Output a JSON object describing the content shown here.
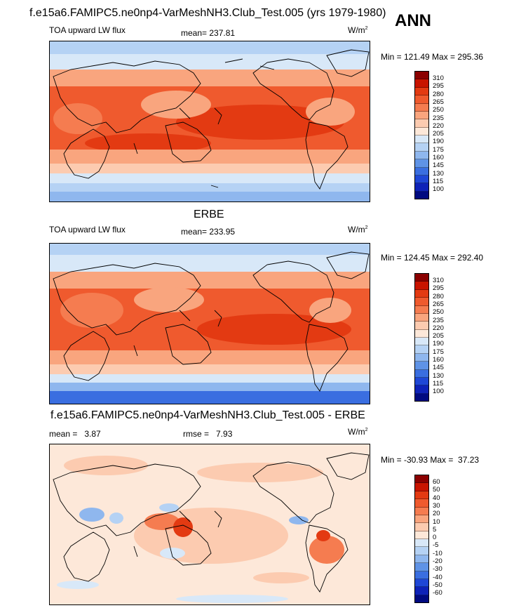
{
  "main_title": "f.e15a6.FAMIPC5.ne0np4-VarMeshNH3.Club_Test.005 (yrs 1979-1980)",
  "season": "ANN",
  "panels": [
    {
      "id": "model",
      "variable": "TOA upward LW flux",
      "mean": "mean= 237.81",
      "units": "W/m",
      "units_exp": "2",
      "minmax": "Min = 121.49 Max = 295.36"
    },
    {
      "id": "obs",
      "title": "ERBE",
      "variable": "TOA upward LW flux",
      "mean": "mean= 233.95",
      "units": "W/m",
      "units_exp": "2",
      "minmax": "Min = 124.45 Max = 292.40"
    },
    {
      "id": "diff",
      "title": "f.e15a6.FAMIPC5.ne0np4-VarMeshNH3.Club_Test.005 - ERBE",
      "mean": "mean =   3.87",
      "rmse": "rmse =   7.93",
      "units": "W/m",
      "units_exp": "2",
      "minmax": "Min = -30.93 Max =  37.23"
    }
  ],
  "colorbar_abs": {
    "levels": [
      "310",
      "295",
      "280",
      "265",
      "250",
      "235",
      "220",
      "205",
      "190",
      "175",
      "160",
      "145",
      "130",
      "115",
      "100"
    ],
    "colors": [
      "#8b0000",
      "#c81400",
      "#e33a12",
      "#ef5a2e",
      "#f57c50",
      "#f9a57e",
      "#fccbb0",
      "#fde8d9",
      "#d8e8f8",
      "#b5d2f4",
      "#8fb7ee",
      "#5f93e6",
      "#3a6ee0",
      "#1f47d6",
      "#0e22b8",
      "#000a80"
    ]
  },
  "colorbar_diff": {
    "levels": [
      "60",
      "50",
      "40",
      "30",
      "20",
      "10",
      "5",
      "0",
      "-5",
      "-10",
      "-20",
      "-30",
      "-40",
      "-50",
      "-60"
    ],
    "colors": [
      "#8b0000",
      "#c81400",
      "#e33a12",
      "#ef5a2e",
      "#f57c50",
      "#f9a57e",
      "#fccbb0",
      "#fde8d9",
      "#d8e8f8",
      "#b5d2f4",
      "#8fb7ee",
      "#5f93e6",
      "#3a6ee0",
      "#1f47d6",
      "#0e22b8",
      "#000a80"
    ]
  }
}
